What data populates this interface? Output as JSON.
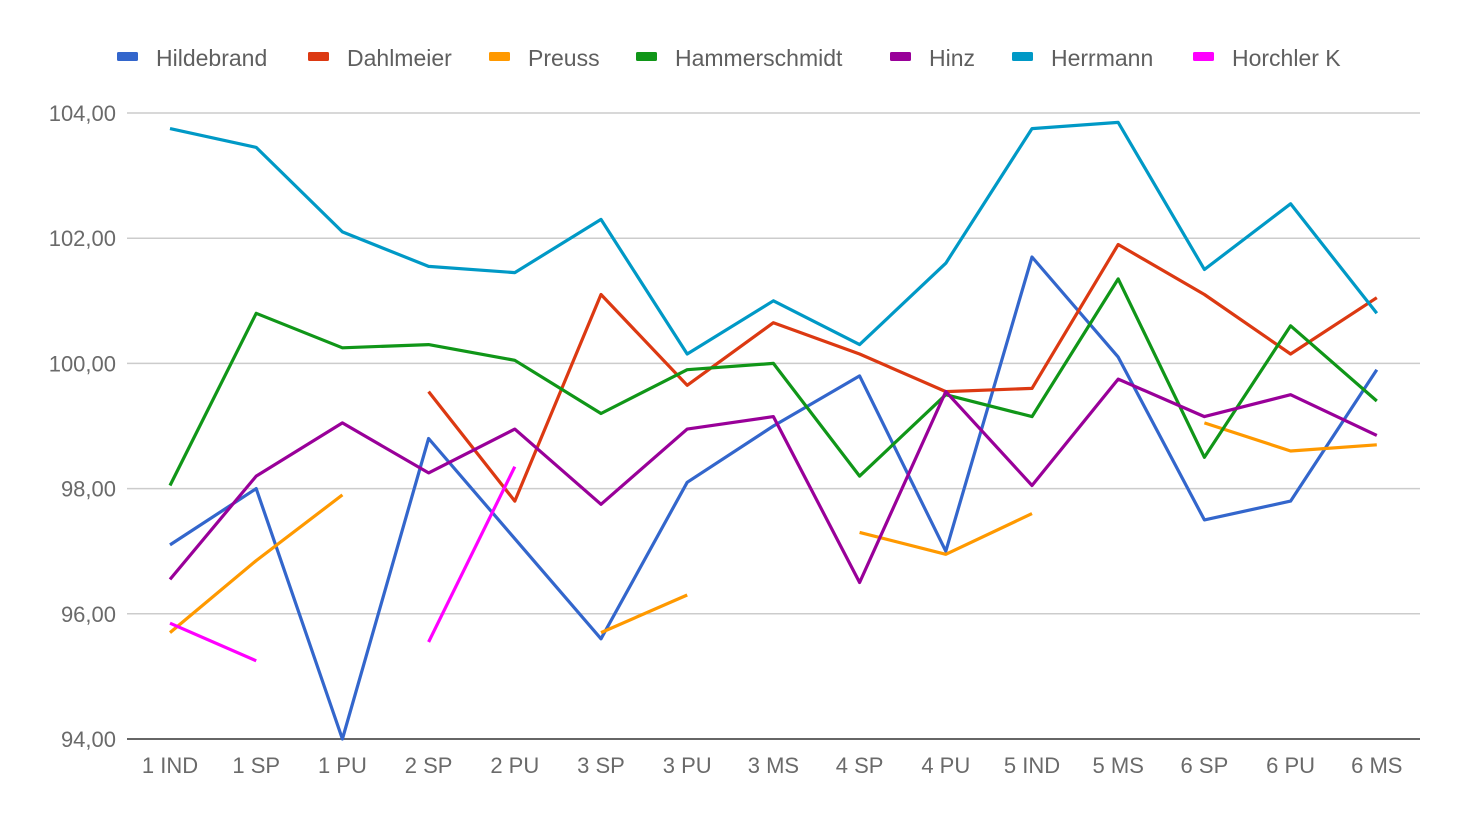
{
  "chart_data": {
    "type": "line",
    "title": "",
    "xlabel": "",
    "ylabel": "",
    "categories": [
      "1 IND",
      "1 SP",
      "1 PU",
      "2 SP",
      "2 PU",
      "3 SP",
      "3 PU",
      "3 MS",
      "4 SP",
      "4 PU",
      "5 IND",
      "5 MS",
      "6 SP",
      "6 PU",
      "6 MS"
    ],
    "ylim": [
      94,
      104
    ],
    "yticks": [
      94,
      96,
      98,
      100,
      102,
      104
    ],
    "ytick_labels": [
      "94,00",
      "96,00",
      "98,00",
      "100,00",
      "102,00",
      "104,00"
    ],
    "grid": true,
    "legend_position": "top",
    "series": [
      {
        "name": "Hildebrand",
        "color": "#3366cc",
        "values": [
          97.1,
          98.0,
          93.8,
          98.8,
          97.2,
          95.6,
          98.1,
          99.0,
          99.8,
          97.0,
          101.7,
          100.1,
          97.5,
          97.8,
          99.9
        ]
      },
      {
        "name": "Dahlmeier",
        "color": "#dc3912",
        "values": [
          null,
          null,
          null,
          99.55,
          97.8,
          101.1,
          99.65,
          100.65,
          100.15,
          99.55,
          99.6,
          101.9,
          101.1,
          100.15,
          101.05
        ]
      },
      {
        "name": "Preuss",
        "color": "#ff9900",
        "values": [
          95.7,
          96.85,
          97.9,
          null,
          null,
          95.7,
          96.3,
          null,
          97.3,
          96.95,
          97.6,
          null,
          99.05,
          98.6,
          98.7
        ]
      },
      {
        "name": "Hammerschmidt",
        "color": "#109618",
        "values": [
          98.05,
          100.8,
          100.25,
          100.3,
          100.05,
          99.2,
          99.9,
          100.0,
          98.2,
          99.5,
          99.15,
          101.35,
          98.5,
          100.6,
          99.4
        ]
      },
      {
        "name": "Hinz",
        "color": "#990099",
        "values": [
          96.55,
          98.2,
          99.05,
          98.25,
          98.95,
          97.75,
          98.95,
          99.15,
          96.5,
          99.55,
          98.05,
          99.75,
          99.15,
          99.5,
          98.85
        ]
      },
      {
        "name": "Herrmann",
        "color": "#0099c6",
        "values": [
          103.75,
          103.45,
          102.1,
          101.55,
          101.45,
          102.3,
          100.15,
          101.0,
          100.3,
          101.6,
          103.75,
          103.85,
          101.5,
          102.55,
          100.8
        ]
      },
      {
        "name": "Horchler K",
        "color": "#ff00ff",
        "values": [
          95.85,
          95.25,
          null,
          95.55,
          98.35,
          null,
          null,
          null,
          null,
          null,
          null,
          null,
          null,
          null,
          null
        ]
      }
    ]
  }
}
